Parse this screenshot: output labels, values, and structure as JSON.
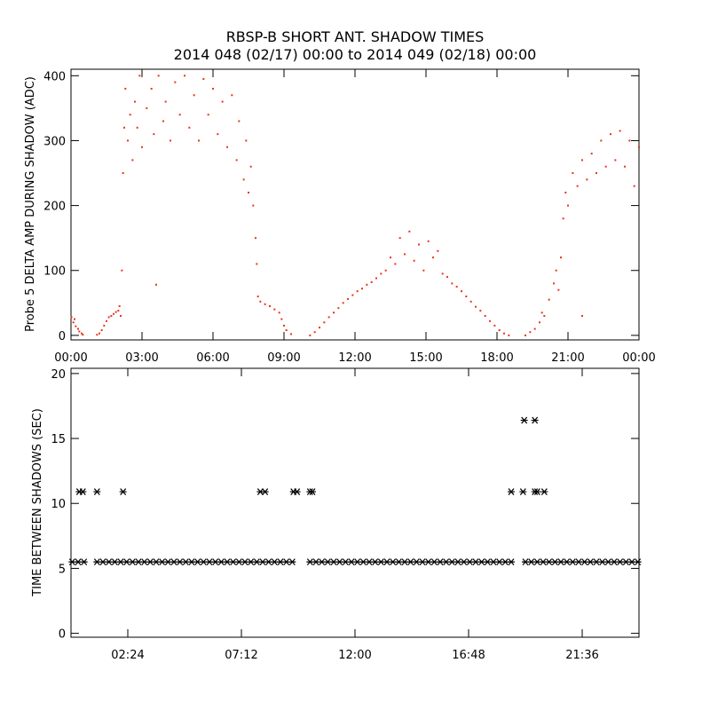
{
  "chart_data": [
    {
      "type": "scatter",
      "marker": "dot",
      "color": "#e8341c",
      "title": "RBSP-B SHORT ANT. SHADOW TIMES",
      "subtitle": "2014 048 (02/17) 00:00 to 2014 049 (02/18) 00:00",
      "y_label": "Probe 5 DELTA AMP DURING SHADOW (ADC)",
      "xlim": [
        0,
        24
      ],
      "ylim": [
        -7,
        410
      ],
      "xticks": [
        {
          "value": 0,
          "label": "00:00"
        },
        {
          "value": 3,
          "label": "03:00"
        },
        {
          "value": 6,
          "label": "06:00"
        },
        {
          "value": 9,
          "label": "09:00"
        },
        {
          "value": 12,
          "label": "12:00"
        },
        {
          "value": 15,
          "label": "15:00"
        },
        {
          "value": 18,
          "label": "18:00"
        },
        {
          "value": 21,
          "label": "21:00"
        },
        {
          "value": 24,
          "label": "00:00"
        }
      ],
      "yticks": [
        0,
        100,
        200,
        300,
        400
      ],
      "x": [
        0.02,
        0.1,
        0.15,
        0.2,
        0.3,
        0.35,
        0.45,
        0.5,
        1.1,
        1.2,
        1.3,
        1.4,
        1.5,
        1.6,
        1.7,
        1.8,
        1.9,
        2.0,
        2.05,
        2.1,
        2.15,
        2.2,
        2.25,
        2.3,
        2.4,
        2.5,
        2.6,
        2.7,
        2.8,
        2.9,
        3.0,
        3.2,
        3.4,
        3.5,
        3.6,
        3.7,
        3.9,
        4.0,
        4.2,
        4.4,
        4.6,
        4.8,
        5.0,
        5.2,
        5.4,
        5.6,
        5.8,
        6.0,
        6.2,
        6.4,
        6.6,
        6.8,
        7.0,
        7.1,
        7.3,
        7.4,
        7.5,
        7.6,
        7.7,
        7.8,
        7.85,
        7.9,
        8.0,
        8.2,
        8.4,
        8.6,
        8.8,
        8.9,
        9.0,
        9.1,
        9.3,
        10.1,
        10.3,
        10.5,
        10.7,
        10.9,
        11.1,
        11.3,
        11.5,
        11.7,
        11.9,
        12.1,
        12.3,
        12.5,
        12.7,
        12.9,
        13.1,
        13.3,
        13.5,
        13.7,
        13.9,
        14.1,
        14.3,
        14.5,
        14.7,
        14.9,
        15.1,
        15.3,
        15.5,
        15.7,
        15.9,
        16.1,
        16.3,
        16.5,
        16.7,
        16.9,
        17.1,
        17.3,
        17.5,
        17.7,
        17.9,
        18.1,
        18.3,
        18.5,
        19.2,
        19.4,
        19.6,
        19.8,
        19.9,
        20.0,
        20.2,
        20.4,
        20.5,
        20.6,
        20.7,
        20.8,
        20.9,
        21.0,
        21.2,
        21.4,
        21.6,
        21.6,
        21.8,
        22.0,
        22.2,
        22.4,
        22.6,
        22.8,
        23.0,
        23.2,
        23.4,
        23.6,
        23.8,
        24.0
      ],
      "y": [
        28,
        20,
        25,
        14,
        10,
        6,
        3,
        1,
        1,
        3,
        8,
        15,
        22,
        28,
        30,
        33,
        36,
        38,
        45,
        30,
        100,
        250,
        320,
        380,
        300,
        340,
        270,
        360,
        320,
        400,
        290,
        350,
        380,
        310,
        78,
        400,
        330,
        360,
        300,
        390,
        340,
        400,
        320,
        370,
        300,
        395,
        340,
        380,
        310,
        360,
        290,
        370,
        270,
        330,
        240,
        300,
        220,
        260,
        200,
        150,
        110,
        60,
        52,
        48,
        45,
        40,
        35,
        25,
        15,
        8,
        2,
        0,
        5,
        12,
        20,
        28,
        35,
        42,
        50,
        56,
        62,
        68,
        72,
        78,
        82,
        88,
        95,
        100,
        120,
        110,
        150,
        125,
        160,
        115,
        140,
        100,
        145,
        120,
        130,
        95,
        90,
        80,
        75,
        68,
        60,
        52,
        44,
        38,
        30,
        22,
        15,
        8,
        3,
        0,
        0,
        5,
        10,
        20,
        35,
        30,
        55,
        80,
        100,
        70,
        120,
        180,
        220,
        200,
        250,
        230,
        270,
        30,
        240,
        280,
        250,
        300,
        260,
        310,
        270,
        315,
        260,
        300,
        230,
        290
      ]
    },
    {
      "type": "scatter",
      "marker": "asterisk",
      "color": "#000000",
      "y_label": "TIME BETWEEN SHADOWS (SEC)",
      "xlim": [
        0,
        24
      ],
      "ylim": [
        -0.3,
        20.4
      ],
      "xticks": [
        {
          "value": 2.4,
          "label": "02:24"
        },
        {
          "value": 7.2,
          "label": "07:12"
        },
        {
          "value": 12,
          "label": "12:00"
        },
        {
          "value": 16.8,
          "label": "16:48"
        },
        {
          "value": 21.6,
          "label": "21:36"
        }
      ],
      "yticks": [
        0,
        5,
        10,
        15,
        20
      ],
      "x": [
        0.05,
        0.3,
        0.55,
        1.1,
        1.35,
        1.6,
        1.85,
        2.1,
        2.35,
        2.6,
        2.85,
        3.1,
        3.35,
        3.6,
        3.85,
        4.1,
        4.35,
        4.6,
        4.85,
        5.1,
        5.35,
        5.6,
        5.85,
        6.1,
        6.35,
        6.6,
        6.85,
        7.1,
        7.35,
        7.6,
        7.85,
        8.1,
        8.35,
        8.6,
        8.85,
        9.1,
        9.35,
        10.1,
        10.35,
        10.6,
        10.85,
        11.1,
        11.35,
        11.6,
        11.85,
        12.1,
        12.35,
        12.6,
        12.85,
        13.1,
        13.35,
        13.6,
        13.85,
        14.1,
        14.35,
        14.6,
        14.85,
        15.1,
        15.35,
        15.6,
        15.85,
        16.1,
        16.35,
        16.6,
        16.85,
        17.1,
        17.35,
        17.6,
        17.85,
        18.1,
        18.35,
        18.6,
        19.2,
        19.45,
        19.7,
        19.95,
        20.2,
        20.45,
        20.7,
        20.95,
        21.2,
        21.45,
        21.7,
        21.95,
        22.2,
        22.45,
        22.7,
        22.95,
        23.2,
        23.45,
        23.7,
        23.95,
        0.35,
        0.5,
        1.1,
        2.2,
        8.0,
        8.2,
        9.4,
        9.55,
        10.1,
        10.2,
        18.6,
        19.1,
        19.6,
        19.7,
        20.0,
        19.15,
        19.6
      ],
      "y": [
        5.5,
        5.5,
        5.5,
        5.5,
        5.5,
        5.5,
        5.5,
        5.5,
        5.5,
        5.5,
        5.5,
        5.5,
        5.5,
        5.5,
        5.5,
        5.5,
        5.5,
        5.5,
        5.5,
        5.5,
        5.5,
        5.5,
        5.5,
        5.5,
        5.5,
        5.5,
        5.5,
        5.5,
        5.5,
        5.5,
        5.5,
        5.5,
        5.5,
        5.5,
        5.5,
        5.5,
        5.5,
        5.5,
        5.5,
        5.5,
        5.5,
        5.5,
        5.5,
        5.5,
        5.5,
        5.5,
        5.5,
        5.5,
        5.5,
        5.5,
        5.5,
        5.5,
        5.5,
        5.5,
        5.5,
        5.5,
        5.5,
        5.5,
        5.5,
        5.5,
        5.5,
        5.5,
        5.5,
        5.5,
        5.5,
        5.5,
        5.5,
        5.5,
        5.5,
        5.5,
        5.5,
        5.5,
        5.5,
        5.5,
        5.5,
        5.5,
        5.5,
        5.5,
        5.5,
        5.5,
        5.5,
        5.5,
        5.5,
        5.5,
        5.5,
        5.5,
        5.5,
        5.5,
        5.5,
        5.5,
        5.5,
        5.5,
        10.9,
        10.9,
        10.9,
        10.9,
        10.9,
        10.9,
        10.9,
        10.9,
        10.9,
        10.9,
        10.9,
        10.9,
        10.9,
        10.9,
        10.9,
        16.4,
        16.4
      ]
    }
  ]
}
